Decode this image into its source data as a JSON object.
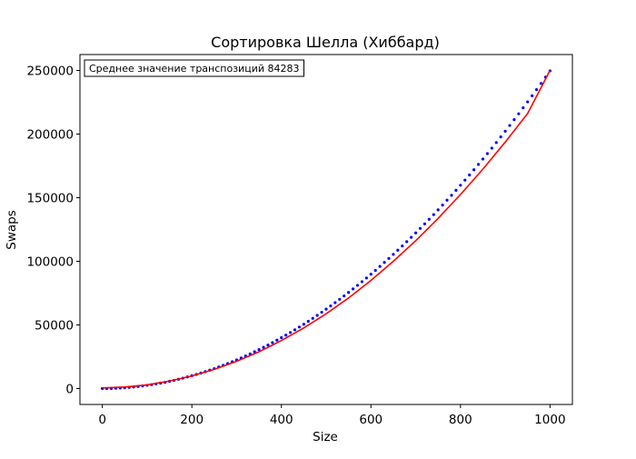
{
  "chart_data": {
    "type": "scatter",
    "title": "Сортировка Шелла (Хиббард)",
    "xlabel": "Size",
    "ylabel": "Swaps",
    "xlim": [
      -50,
      1050
    ],
    "ylim": [
      -12500,
      262500
    ],
    "xticks": [
      0,
      200,
      400,
      600,
      800,
      1000
    ],
    "yticks": [
      0,
      50000,
      100000,
      150000,
      200000,
      250000
    ],
    "grid": false,
    "annotation": "Среднее значение транспозиций 84283",
    "annotation_position": "top-left",
    "series": [
      {
        "kind": "points",
        "color": "#0000ff",
        "x": [
          0,
          10,
          20,
          30,
          40,
          50,
          60,
          70,
          80,
          90,
          100,
          110,
          120,
          130,
          140,
          150,
          160,
          170,
          180,
          190,
          200,
          210,
          220,
          230,
          240,
          250,
          260,
          270,
          280,
          290,
          300,
          310,
          320,
          330,
          340,
          350,
          360,
          370,
          380,
          390,
          400,
          410,
          420,
          430,
          440,
          450,
          460,
          470,
          480,
          490,
          500,
          510,
          520,
          530,
          540,
          550,
          560,
          570,
          580,
          590,
          600,
          610,
          620,
          630,
          640,
          650,
          660,
          670,
          680,
          690,
          700,
          710,
          720,
          730,
          740,
          750,
          760,
          770,
          780,
          790,
          800,
          810,
          820,
          830,
          840,
          850,
          860,
          870,
          880,
          890,
          900,
          910,
          920,
          930,
          940,
          950,
          960,
          970,
          980,
          990,
          1000
        ],
        "y": [
          0,
          30,
          110,
          240,
          420,
          650,
          930,
          1260,
          1640,
          2070,
          2550,
          3080,
          3660,
          4290,
          4970,
          5700,
          6480,
          7310,
          8180,
          9110,
          10080,
          11100,
          12170,
          13290,
          14460,
          15680,
          16950,
          18270,
          19640,
          21060,
          22530,
          24050,
          25620,
          27240,
          28910,
          30630,
          32400,
          34220,
          36090,
          38010,
          39980,
          42000,
          44070,
          46190,
          48360,
          50580,
          52850,
          55170,
          57540,
          59960,
          62430,
          64950,
          67520,
          70140,
          72810,
          75530,
          78300,
          81120,
          83990,
          86910,
          89880,
          92900,
          95970,
          99090,
          102260,
          105480,
          108750,
          112070,
          115440,
          118860,
          122330,
          125850,
          129420,
          133040,
          136710,
          140430,
          144200,
          148020,
          151890,
          155810,
          159780,
          163800,
          167870,
          171990,
          176160,
          180380,
          184650,
          188970,
          193340,
          197760,
          202230,
          206750,
          211320,
          215940,
          220610,
          225330,
          230100,
          234920,
          239790,
          244710,
          249680
        ]
      },
      {
        "kind": "fit-line",
        "color": "#ff0000",
        "x": [
          0,
          50,
          100,
          150,
          200,
          250,
          300,
          350,
          400,
          450,
          500,
          550,
          600,
          650,
          700,
          750,
          800,
          850,
          900,
          950,
          1000
        ],
        "y": [
          500,
          1200,
          2900,
          5900,
          9900,
          15100,
          21400,
          28900,
          37700,
          47600,
          58800,
          71200,
          85000,
          100000,
          116200,
          133700,
          152500,
          172400,
          193700,
          216200,
          250000
        ]
      }
    ]
  }
}
